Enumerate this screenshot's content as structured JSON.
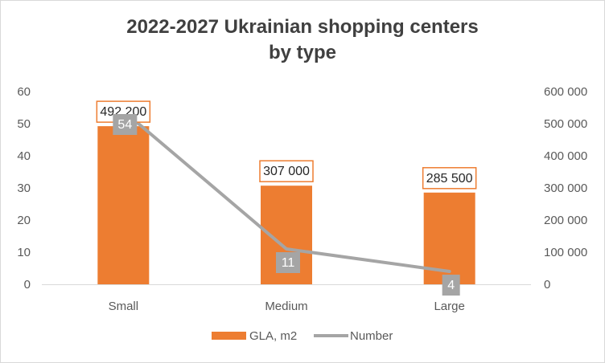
{
  "chart_data": {
    "type": "bar",
    "title_line1": "2022-2027 Ukrainian shopping centers",
    "title_line2": "by type",
    "categories": [
      "Small",
      "Medium",
      "Large"
    ],
    "series": [
      {
        "name": "GLA, m2",
        "type": "bar",
        "axis": "secondary",
        "values": [
          492200,
          307000,
          285500
        ],
        "labels": [
          "492 200",
          "307 000",
          "285 500"
        ],
        "color": "#ed7d31"
      },
      {
        "name": "Number",
        "type": "line",
        "axis": "primary",
        "values": [
          54,
          11,
          4
        ],
        "labels": [
          "54",
          "11",
          "4"
        ],
        "color": "#a5a5a5"
      }
    ],
    "y_primary": {
      "min": 0,
      "max": 60,
      "step": 10,
      "ticks": [
        "0",
        "10",
        "20",
        "30",
        "40",
        "50",
        "60"
      ]
    },
    "y_secondary": {
      "min": 0,
      "max": 600000,
      "step": 100000,
      "ticks": [
        "0",
        "100 000",
        "200 000",
        "300 000",
        "400 000",
        "500 000",
        "600 000"
      ]
    },
    "legend_position": "bottom",
    "grid": false
  }
}
